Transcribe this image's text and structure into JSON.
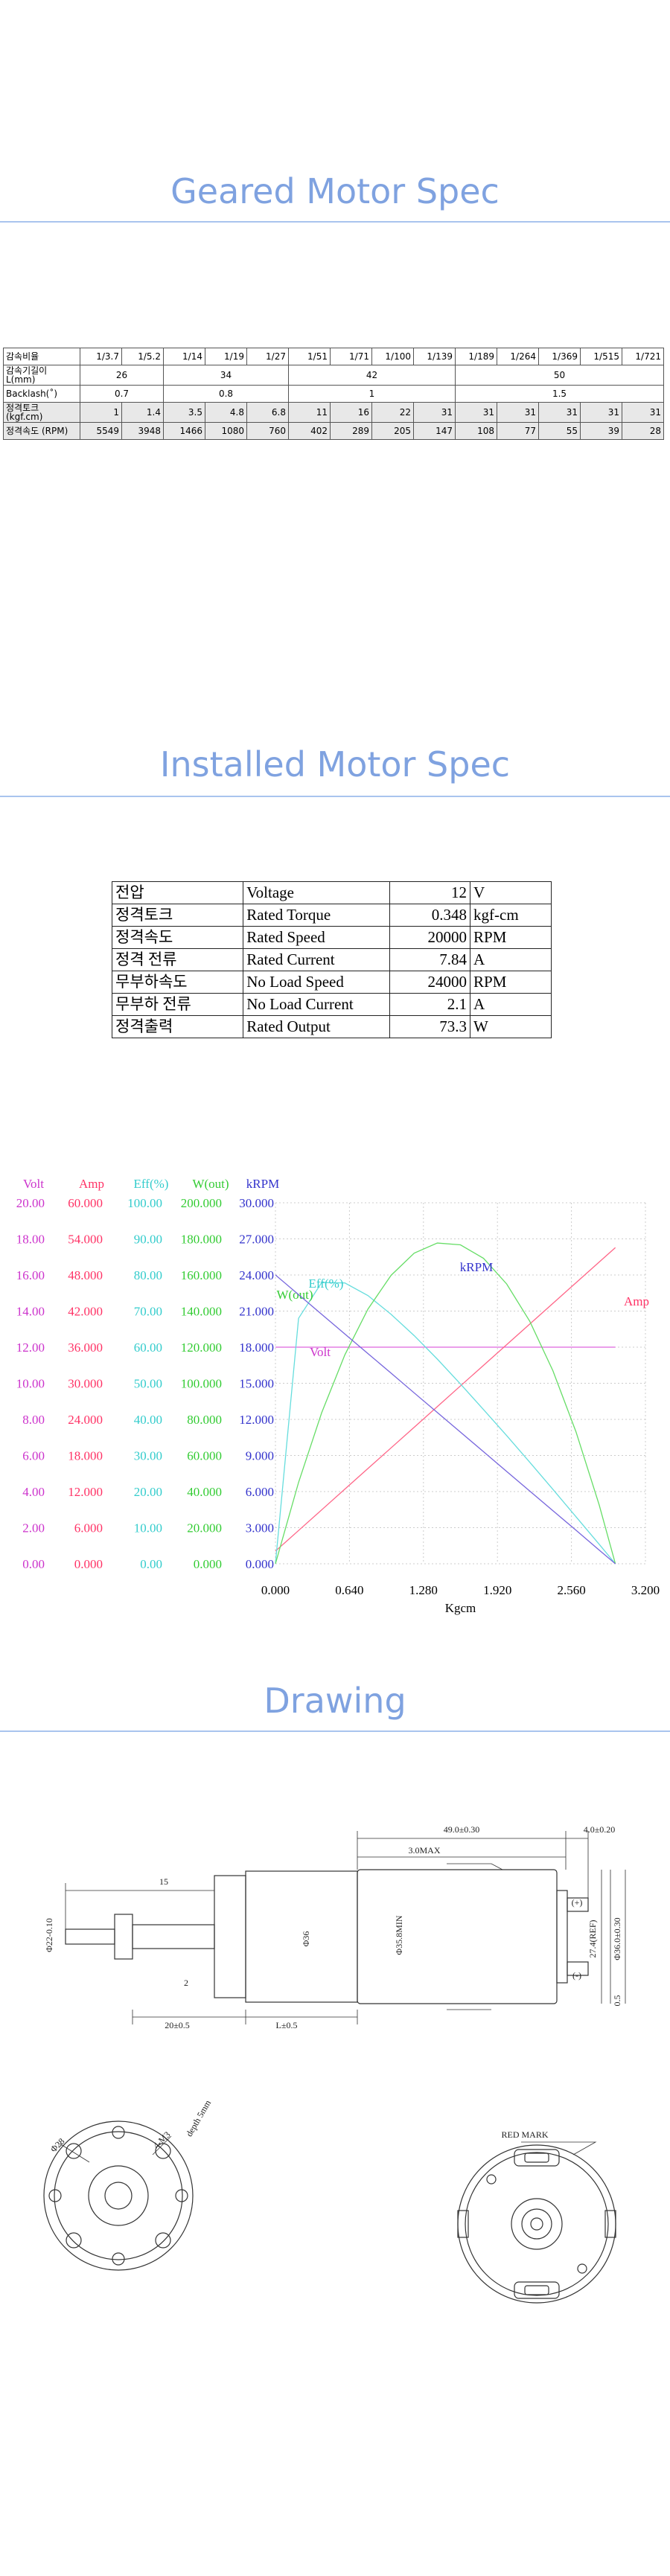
{
  "geared": {
    "title": "Geared Motor Spec",
    "rows": [
      [
        "감속비율",
        "1/3.7",
        "1/5.2",
        "1/14",
        "1/19",
        "1/27",
        "1/51",
        "1/71",
        "1/100",
        "1/139",
        "1/189",
        "1/264",
        "1/369",
        "1/515",
        "1/721"
      ],
      [
        "감속기길이 L(mm)",
        26,
        34,
        42,
        50
      ],
      [
        "Backlash(˚)",
        0.7,
        0.8,
        1,
        1.5
      ],
      [
        "정격토크 (kgf.cm)",
        1,
        1.4,
        3.5,
        4.8,
        6.8,
        11,
        16,
        22,
        31,
        31,
        31,
        31,
        31,
        31
      ],
      [
        "정격속도 (RPM)",
        5549,
        3948,
        1466,
        1080,
        760,
        402,
        289,
        205,
        147,
        108,
        77,
        55,
        39,
        28
      ]
    ]
  },
  "installed": {
    "title": "Installed Motor Spec",
    "rows": [
      [
        "전압",
        "Voltage",
        12,
        "V"
      ],
      [
        "정격토크",
        "Rated Torque",
        0.348,
        "kgf-cm"
      ],
      [
        "정격속도",
        "Rated Speed",
        20000,
        "RPM"
      ],
      [
        "정격 전류",
        "Rated Current",
        7.84,
        "A"
      ],
      [
        "무부하속도",
        "No Load Speed",
        24000,
        "RPM"
      ],
      [
        "무부하 전류",
        "No Load Current",
        2.1,
        "A"
      ],
      [
        "정격출력",
        "Rated Output",
        73.3,
        "W"
      ]
    ]
  },
  "chart_data": {
    "type": "line",
    "x_label": "Kgcm",
    "grid": true,
    "xlim": [
      0,
      3.2
    ],
    "xticks": [
      {
        "value": 0,
        "label": "0.000"
      },
      {
        "value": 0.64,
        "label": "0.640"
      },
      {
        "value": 1.28,
        "label": "1.280"
      },
      {
        "value": 1.92,
        "label": "1.920"
      },
      {
        "value": 2.56,
        "label": "2.560"
      },
      {
        "value": 3.2,
        "label": "3.200"
      }
    ],
    "axes": [
      {
        "name": "Volt",
        "color": "#cc33cc",
        "ylim": [
          0,
          20
        ],
        "yticks": [
          {
            "value": 0,
            "label": "0.00"
          },
          {
            "value": 2,
            "label": "2.00"
          },
          {
            "value": 4,
            "label": "4.00"
          },
          {
            "value": 6,
            "label": "6.00"
          },
          {
            "value": 8,
            "label": "8.00"
          },
          {
            "value": 10,
            "label": "10.00"
          },
          {
            "value": 12,
            "label": "12.00"
          },
          {
            "value": 14,
            "label": "14.00"
          },
          {
            "value": 16,
            "label": "16.00"
          },
          {
            "value": 18,
            "label": "18.00"
          },
          {
            "value": 20,
            "label": "20.00"
          }
        ]
      },
      {
        "name": "Amp",
        "color": "#ff3366",
        "ylim": [
          0,
          60
        ],
        "yticks": [
          {
            "value": 0,
            "label": "0.000"
          },
          {
            "value": 6,
            "label": "6.000"
          },
          {
            "value": 12,
            "label": "12.000"
          },
          {
            "value": 18,
            "label": "18.000"
          },
          {
            "value": 24,
            "label": "24.000"
          },
          {
            "value": 30,
            "label": "30.000"
          },
          {
            "value": 36,
            "label": "36.000"
          },
          {
            "value": 42,
            "label": "42.000"
          },
          {
            "value": 48,
            "label": "48.000"
          },
          {
            "value": 54,
            "label": "54.000"
          },
          {
            "value": 60,
            "label": "60.000"
          }
        ]
      },
      {
        "name": "Eff(%)",
        "color": "#33cccc",
        "ylim": [
          0,
          100
        ],
        "yticks": [
          {
            "value": 0,
            "label": "0.00"
          },
          {
            "value": 10,
            "label": "10.00"
          },
          {
            "value": 20,
            "label": "20.00"
          },
          {
            "value": 30,
            "label": "30.00"
          },
          {
            "value": 40,
            "label": "40.00"
          },
          {
            "value": 50,
            "label": "50.00"
          },
          {
            "value": 60,
            "label": "60.00"
          },
          {
            "value": 70,
            "label": "70.00"
          },
          {
            "value": 80,
            "label": "80.00"
          },
          {
            "value": 90,
            "label": "90.00"
          },
          {
            "value": 100,
            "label": "100.00"
          }
        ]
      },
      {
        "name": "W(out)",
        "color": "#33cc33",
        "ylim": [
          0,
          200
        ],
        "yticks": [
          {
            "value": 0,
            "label": "0.000"
          },
          {
            "value": 20,
            "label": "20.000"
          },
          {
            "value": 40,
            "label": "40.000"
          },
          {
            "value": 60,
            "label": "60.000"
          },
          {
            "value": 80,
            "label": "80.000"
          },
          {
            "value": 100,
            "label": "100.000"
          },
          {
            "value": 120,
            "label": "120.000"
          },
          {
            "value": 140,
            "label": "140.000"
          },
          {
            "value": 160,
            "label": "160.000"
          },
          {
            "value": 180,
            "label": "180.000"
          },
          {
            "value": 200,
            "label": "200.000"
          }
        ]
      },
      {
        "name": "kRPM",
        "color": "#3333cc",
        "ylim": [
          0,
          30
        ],
        "yticks": [
          {
            "value": 0,
            "label": "0.000"
          },
          {
            "value": 3,
            "label": "3.000"
          },
          {
            "value": 6,
            "label": "6.000"
          },
          {
            "value": 9,
            "label": "9.000"
          },
          {
            "value": 12,
            "label": "12.000"
          },
          {
            "value": 15,
            "label": "15.000"
          },
          {
            "value": 18,
            "label": "18.000"
          },
          {
            "value": 21,
            "label": "21.000"
          },
          {
            "value": 24,
            "label": "24.000"
          },
          {
            "value": 27,
            "label": "27.000"
          },
          {
            "value": 30,
            "label": "30.000"
          }
        ]
      }
    ],
    "x": [
      0,
      0.2,
      0.4,
      0.6,
      0.8,
      1.0,
      1.2,
      1.4,
      1.6,
      1.8,
      2.0,
      2.2,
      2.4,
      2.6,
      2.8,
      2.94
    ],
    "series": [
      {
        "name": "Volt",
        "axis": 0,
        "color": "#dd66dd",
        "values": [
          12,
          12,
          12,
          12,
          12,
          12,
          12,
          12,
          12,
          12,
          12,
          12,
          12,
          12,
          12,
          12
        ]
      },
      {
        "name": "Amp",
        "axis": 1,
        "color": "#ff6688",
        "values": [
          2.1,
          5.53,
          8.96,
          12.4,
          15.83,
          19.26,
          22.69,
          26.12,
          29.56,
          32.99,
          36.42,
          39.85,
          43.28,
          46.72,
          50.15,
          52.55
        ]
      },
      {
        "name": "Eff(%)",
        "axis": 2,
        "color": "#66dddd",
        "values": [
          0,
          68.0,
          77.9,
          77.8,
          74.3,
          69.1,
          63.2,
          56.7,
          49.8,
          42.7,
          35.5,
          28.1,
          20.6,
          13.0,
          5.4,
          0
        ]
      },
      {
        "name": "W(out)",
        "axis": 3,
        "color": "#66dd66",
        "values": [
          0,
          45.1,
          83.7,
          115.7,
          141.1,
          159.8,
          172.1,
          177.7,
          176.7,
          169.2,
          155.0,
          134.3,
          106.9,
          73.0,
          32.6,
          0
        ]
      },
      {
        "name": "kRPM",
        "axis": 4,
        "color": "#7766dd",
        "values": [
          24,
          22.37,
          20.73,
          19.1,
          17.47,
          15.84,
          14.2,
          12.57,
          10.94,
          9.31,
          7.67,
          6.04,
          4.41,
          2.78,
          1.14,
          0
        ]
      }
    ]
  },
  "drawing": {
    "title": "Drawing",
    "labels": [
      "49.0±0.30",
      "4.0±0.20",
      "3.0MAX",
      "15",
      "Φ36",
      "Φ35.8MIN",
      "27.4(REF)",
      "Φ36.0±0.30",
      "0.5",
      "(+)",
      "(-)",
      "2",
      "20±0.5",
      "L±0.5",
      "Φ28",
      "4-M3",
      "depth 5mm",
      "RED MARK",
      "Φ22-0.10"
    ]
  }
}
